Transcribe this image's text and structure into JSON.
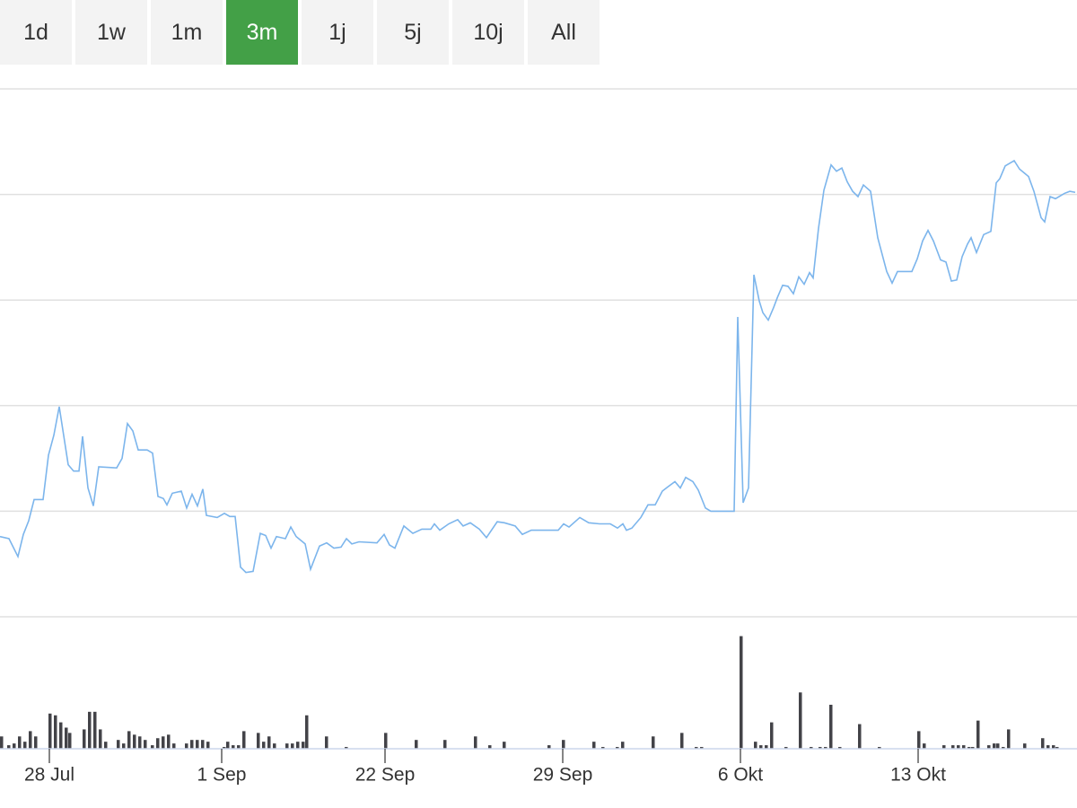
{
  "range_buttons": {
    "labels": [
      "1d",
      "1w",
      "1m",
      "3m",
      "1j",
      "5j",
      "10j",
      "All"
    ],
    "selected_index": 3
  },
  "chart_data": [
    {
      "type": "line",
      "color": "#7cb5ec",
      "grid": true,
      "xlim": [
        0,
        1200
      ],
      "ylim": [
        0,
        5
      ],
      "yticks": [
        0,
        1,
        2,
        3,
        4,
        5
      ],
      "series": [
        {
          "x": [
            0,
            10,
            20,
            26,
            32,
            38,
            48,
            54,
            60,
            66,
            76,
            82,
            88,
            92,
            98,
            104,
            110,
            130,
            136,
            142,
            148,
            154,
            164,
            170,
            176,
            182,
            186,
            192,
            202,
            208,
            214,
            220,
            226,
            230,
            242,
            250,
            256,
            262,
            268,
            274,
            282,
            290,
            296,
            302,
            308,
            318,
            324,
            330,
            340,
            346,
            356,
            364,
            372,
            380,
            386,
            392,
            400,
            420,
            428,
            434,
            440,
            450,
            460,
            470,
            480,
            484,
            490,
            500,
            510,
            516,
            524,
            534,
            542,
            554,
            562,
            574,
            582,
            592,
            622,
            628,
            634,
            646,
            656,
            668,
            680,
            688,
            694,
            698,
            704,
            714,
            722,
            730,
            738,
            744,
            752,
            758,
            764,
            772,
            778,
            786,
            792,
            818,
            822,
            828,
            834,
            840,
            846,
            850,
            856,
            862,
            866,
            872,
            878,
            884,
            890,
            896,
            902,
            906,
            912,
            918,
            926,
            932,
            938,
            944,
            950,
            956,
            962,
            970,
            978,
            988,
            994,
            1000,
            1016,
            1022,
            1028,
            1034,
            1040,
            1048,
            1054,
            1060,
            1066,
            1072,
            1078,
            1082,
            1088,
            1096,
            1104,
            1110,
            1114,
            1120,
            1130,
            1136,
            1146,
            1152,
            1160,
            1164,
            1170,
            1176,
            1186,
            1192,
            1198
          ],
          "values": [
            0.76,
            0.74,
            0.57,
            0.78,
            0.91,
            1.11,
            1.11,
            1.53,
            1.72,
            1.99,
            1.44,
            1.38,
            1.38,
            1.71,
            1.22,
            1.05,
            1.42,
            1.41,
            1.5,
            1.83,
            1.76,
            1.58,
            1.58,
            1.55,
            1.14,
            1.12,
            1.06,
            1.17,
            1.19,
            1.03,
            1.16,
            1.05,
            1.21,
            0.96,
            0.94,
            0.98,
            0.95,
            0.95,
            0.47,
            0.42,
            0.43,
            0.79,
            0.77,
            0.65,
            0.76,
            0.74,
            0.85,
            0.76,
            0.69,
            0.45,
            0.67,
            0.7,
            0.65,
            0.66,
            0.74,
            0.69,
            0.71,
            0.7,
            0.78,
            0.68,
            0.65,
            0.86,
            0.79,
            0.83,
            0.83,
            0.88,
            0.82,
            0.88,
            0.92,
            0.86,
            0.89,
            0.83,
            0.75,
            0.9,
            0.89,
            0.86,
            0.78,
            0.82,
            0.82,
            0.88,
            0.85,
            0.94,
            0.89,
            0.88,
            0.88,
            0.84,
            0.88,
            0.82,
            0.84,
            0.94,
            1.06,
            1.06,
            1.19,
            1.23,
            1.28,
            1.22,
            1.32,
            1.28,
            1.2,
            1.03,
            1.0,
            1.0,
            2.84,
            1.08,
            1.22,
            3.24,
            2.99,
            2.88,
            2.81,
            2.93,
            3.02,
            3.14,
            3.13,
            3.06,
            3.22,
            3.15,
            3.26,
            3.21,
            3.68,
            4.04,
            4.28,
            4.22,
            4.25,
            4.12,
            4.03,
            3.98,
            4.09,
            4.03,
            3.59,
            3.27,
            3.16,
            3.27,
            3.27,
            3.39,
            3.56,
            3.66,
            3.56,
            3.38,
            3.36,
            3.18,
            3.19,
            3.41,
            3.53,
            3.59,
            3.45,
            3.62,
            3.65,
            4.11,
            4.15,
            4.27,
            4.32,
            4.24,
            4.17,
            4.03,
            3.78,
            3.74,
            3.98,
            3.96,
            4.01,
            4.03,
            4.02
          ]
        }
      ]
    },
    {
      "type": "bar",
      "color": "#434348",
      "xlim": [
        0,
        1200
      ],
      "ylim": [
        0,
        150
      ],
      "xticks": [
        {
          "value": 55,
          "label": "28 Jul"
        },
        {
          "value": 247,
          "label": "1 Sep"
        },
        {
          "value": 429,
          "label": "22 Sep"
        },
        {
          "value": 627,
          "label": "29 Sep"
        },
        {
          "value": 825,
          "label": "6 Okt"
        },
        {
          "value": 1023,
          "label": "13 Okt"
        }
      ],
      "x": [
        0,
        8,
        14,
        20,
        26,
        32,
        38,
        54,
        60,
        66,
        72,
        76,
        92,
        98,
        104,
        110,
        116,
        130,
        136,
        142,
        148,
        154,
        160,
        168,
        174,
        180,
        186,
        192,
        206,
        212,
        218,
        224,
        230,
        248,
        252,
        258,
        264,
        270,
        286,
        292,
        298,
        304,
        318,
        324,
        330,
        336,
        340,
        362,
        384,
        428,
        462,
        494,
        528,
        544,
        560,
        610,
        626,
        660,
        670,
        686,
        692,
        726,
        758,
        774,
        780,
        824,
        840,
        846,
        852,
        858,
        874,
        890,
        902,
        912,
        918,
        924,
        934,
        956,
        978,
        1022,
        1028,
        1050,
        1060,
        1066,
        1072,
        1078,
        1082,
        1088,
        1100,
        1106,
        1110,
        1116,
        1122,
        1140,
        1160,
        1166,
        1172,
        1176
      ],
      "values": [
        14,
        4,
        6,
        14,
        8,
        20,
        14,
        40,
        38,
        30,
        24,
        18,
        22,
        42,
        42,
        22,
        8,
        10,
        6,
        20,
        16,
        14,
        10,
        4,
        12,
        14,
        16,
        6,
        6,
        10,
        10,
        10,
        8,
        2,
        8,
        4,
        4,
        20,
        18,
        8,
        14,
        6,
        6,
        6,
        8,
        8,
        38,
        14,
        2,
        18,
        10,
        10,
        14,
        4,
        8,
        4,
        10,
        8,
        2,
        2,
        8,
        14,
        18,
        2,
        2,
        128,
        8,
        4,
        4,
        30,
        2,
        64,
        2,
        2,
        2,
        50,
        2,
        28,
        2,
        20,
        6,
        4,
        4,
        4,
        4,
        2,
        2,
        32,
        4,
        6,
        6,
        2,
        22,
        6,
        12,
        4,
        4,
        2
      ]
    }
  ]
}
